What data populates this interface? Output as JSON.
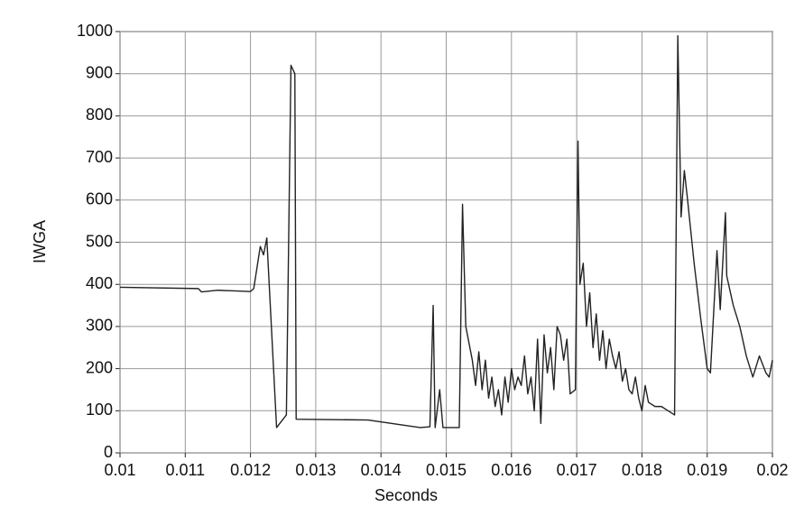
{
  "chart_data": {
    "type": "line",
    "xlabel": "Seconds",
    "ylabel": "IWGA",
    "x": [
      0.01,
      0.0112,
      0.01125,
      0.0115,
      0.012,
      0.01205,
      0.01215,
      0.0122,
      0.01225,
      0.0124,
      0.01255,
      0.01262,
      0.01268,
      0.0127,
      0.0138,
      0.0146,
      0.01475,
      0.0148,
      0.01483,
      0.0149,
      0.01495,
      0.0152,
      0.01525,
      0.0153,
      0.0154,
      0.01545,
      0.0155,
      0.01555,
      0.0156,
      0.01565,
      0.0157,
      0.01575,
      0.0158,
      0.01585,
      0.0159,
      0.01595,
      0.016,
      0.01605,
      0.0161,
      0.01615,
      0.0162,
      0.01625,
      0.0163,
      0.01635,
      0.0164,
      0.01645,
      0.0165,
      0.01655,
      0.0166,
      0.01665,
      0.0167,
      0.01675,
      0.0168,
      0.01685,
      0.0169,
      0.01698,
      0.01702,
      0.01705,
      0.0171,
      0.01715,
      0.0172,
      0.01725,
      0.0173,
      0.01735,
      0.0174,
      0.01745,
      0.0175,
      0.01755,
      0.0176,
      0.01765,
      0.0177,
      0.01775,
      0.0178,
      0.01785,
      0.0179,
      0.01795,
      0.018,
      0.01805,
      0.0181,
      0.0182,
      0.0183,
      0.0184,
      0.0185,
      0.01855,
      0.0186,
      0.01865,
      0.0187,
      0.0188,
      0.0189,
      0.019,
      0.01905,
      0.01915,
      0.0192,
      0.01928,
      0.0193,
      0.0194,
      0.0195,
      0.0196,
      0.0197,
      0.0198,
      0.0199,
      0.01995,
      0.02
    ],
    "series": [
      {
        "name": "IWGA",
        "color": "#222222",
        "values": [
          393,
          390,
          382,
          386,
          383,
          390,
          490,
          470,
          510,
          60,
          90,
          920,
          900,
          80,
          78,
          60,
          62,
          350,
          60,
          150,
          60,
          60,
          590,
          300,
          220,
          160,
          240,
          150,
          220,
          130,
          180,
          110,
          150,
          90,
          180,
          120,
          200,
          150,
          180,
          160,
          230,
          140,
          180,
          100,
          270,
          70,
          280,
          190,
          250,
          150,
          300,
          280,
          220,
          270,
          140,
          150,
          740,
          400,
          450,
          300,
          380,
          250,
          330,
          220,
          290,
          200,
          270,
          230,
          200,
          240,
          170,
          200,
          150,
          140,
          180,
          130,
          100,
          160,
          120,
          110,
          110,
          100,
          90,
          990,
          560,
          670,
          600,
          450,
          320,
          200,
          190,
          480,
          340,
          570,
          420,
          350,
          300,
          230,
          180,
          230,
          190,
          180,
          220
        ]
      }
    ],
    "xlim": [
      0.01,
      0.02
    ],
    "xticks": [
      0.01,
      0.011,
      0.012,
      0.013,
      0.014,
      0.015,
      0.016,
      0.017,
      0.018,
      0.019,
      0.02
    ],
    "ylim": [
      0,
      1000
    ],
    "yticks": [
      0,
      100,
      200,
      300,
      400,
      500,
      600,
      700,
      800,
      900,
      1000
    ],
    "grid": true
  }
}
